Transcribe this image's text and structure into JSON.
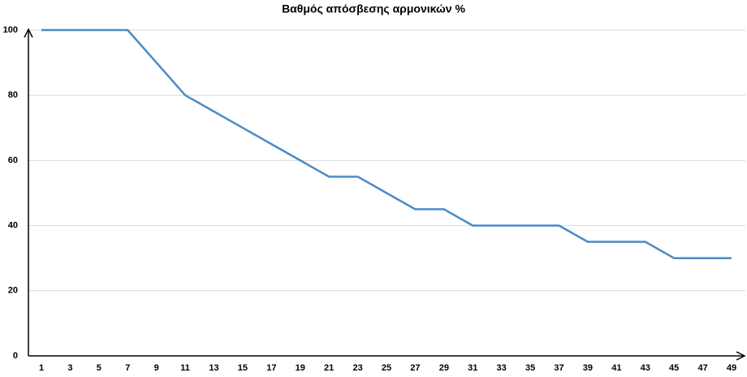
{
  "chart_data": {
    "type": "line",
    "title": "Βαθμός απόσβεσης αρμονικών %",
    "categories": [
      "1",
      "3",
      "5",
      "7",
      "9",
      "11",
      "13",
      "15",
      "17",
      "19",
      "21",
      "23",
      "25",
      "27",
      "29",
      "31",
      "33",
      "35",
      "37",
      "39",
      "41",
      "43",
      "45",
      "47",
      "49"
    ],
    "series": [
      {
        "name": "Βαθμός απόσβεσης",
        "color": "#4a8bc7",
        "values": [
          100,
          100,
          100,
          100,
          90,
          80,
          75,
          70,
          65,
          60,
          55,
          55,
          50,
          45,
          45,
          40,
          40,
          40,
          40,
          35,
          35,
          35,
          30,
          30,
          30
        ]
      }
    ],
    "ylim": [
      0,
      100
    ],
    "yticks": [
      0,
      20,
      40,
      60,
      80,
      100
    ],
    "grid": true
  }
}
